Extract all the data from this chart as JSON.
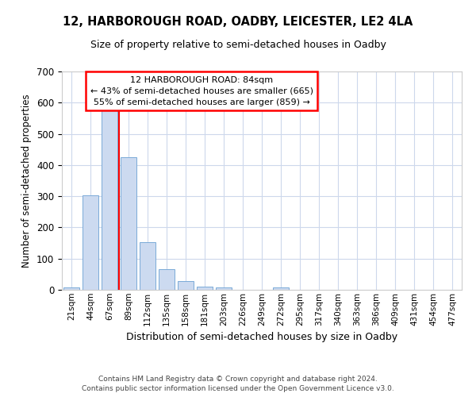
{
  "title1": "12, HARBOROUGH ROAD, OADBY, LEICESTER, LE2 4LA",
  "title2": "Size of property relative to semi-detached houses in Oadby",
  "xlabel": "Distribution of semi-detached houses by size in Oadby",
  "ylabel": "Number of semi-detached properties",
  "bin_labels": [
    "21sqm",
    "44sqm",
    "67sqm",
    "89sqm",
    "112sqm",
    "135sqm",
    "158sqm",
    "181sqm",
    "203sqm",
    "226sqm",
    "249sqm",
    "272sqm",
    "295sqm",
    "317sqm",
    "340sqm",
    "363sqm",
    "386sqm",
    "409sqm",
    "431sqm",
    "454sqm",
    "477sqm"
  ],
  "bar_values": [
    8,
    303,
    575,
    425,
    152,
    65,
    27,
    11,
    7,
    0,
    0,
    8,
    0,
    0,
    0,
    0,
    0,
    0,
    0,
    0,
    0
  ],
  "bar_color": "#ccdaf0",
  "bar_edge_color": "#7aaad8",
  "red_line_x": 2.5,
  "annotation_line1": "12 HARBOROUGH ROAD: 84sqm",
  "annotation_line2": "← 43% of semi-detached houses are smaller (665)",
  "annotation_line3": "55% of semi-detached houses are larger (859) →",
  "footer1": "Contains HM Land Registry data © Crown copyright and database right 2024.",
  "footer2": "Contains public sector information licensed under the Open Government Licence v3.0.",
  "ylim": [
    0,
    700
  ],
  "yticks": [
    0,
    100,
    200,
    300,
    400,
    500,
    600,
    700
  ]
}
